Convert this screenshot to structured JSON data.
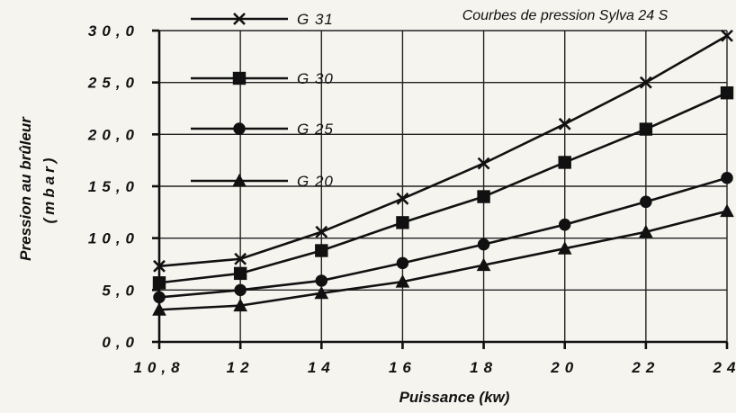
{
  "chart_data": {
    "type": "line",
    "title": "Courbes de pression Sylva 24 S",
    "xlabel": "Puissance (kw)",
    "ylabel_line1": "Pression  au  brûleur",
    "ylabel_line2": "(mbar)",
    "x": [
      10.8,
      12,
      14,
      16,
      18,
      20,
      22,
      24
    ],
    "x_tick_labels": [
      "10,8",
      "12",
      "14",
      "16",
      "18",
      "20",
      "22",
      "24"
    ],
    "y_ticks": [
      0,
      5,
      10,
      15,
      20,
      25,
      30
    ],
    "y_tick_labels": [
      "0,0",
      "5,0",
      "10,0",
      "15,0",
      "20,0",
      "25,0",
      "30,0"
    ],
    "xlim": [
      10.8,
      24
    ],
    "ylim": [
      0,
      30
    ],
    "grid": true,
    "legend_position": "top-left",
    "series": [
      {
        "name": "G 31",
        "marker": "x-cross",
        "values": [
          7.3,
          8.0,
          10.6,
          13.8,
          17.2,
          21.0,
          25.0,
          29.5
        ]
      },
      {
        "name": "G 30",
        "marker": "square",
        "values": [
          5.7,
          6.6,
          8.8,
          11.5,
          14.0,
          17.3,
          20.5,
          24.0
        ]
      },
      {
        "name": "G 25",
        "marker": "circle",
        "values": [
          4.3,
          5.0,
          5.9,
          7.6,
          9.4,
          11.3,
          13.5,
          15.8
        ]
      },
      {
        "name": "G 20",
        "marker": "triangle",
        "values": [
          3.1,
          3.5,
          4.7,
          5.8,
          7.4,
          9.0,
          10.6,
          12.6
        ]
      }
    ]
  }
}
